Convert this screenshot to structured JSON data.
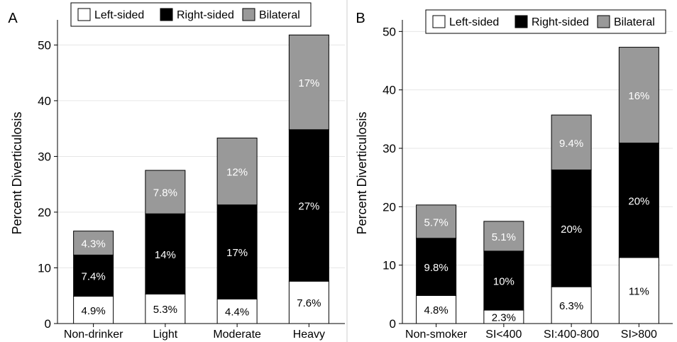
{
  "figure": {
    "divider_color": "#dddddd"
  },
  "legend": {
    "items": [
      {
        "label": "Left-sided",
        "color": "#ffffff"
      },
      {
        "label": "Right-sided",
        "color": "#000000"
      },
      {
        "label": "Bilateral",
        "color": "#999999"
      }
    ]
  },
  "chart_data": [
    {
      "type": "bar",
      "stacked": true,
      "panel_label": "A",
      "ylabel": "Percent Diverticulosis",
      "xlabel": "",
      "ylim": [
        0,
        54
      ],
      "yticks": [
        0,
        10,
        20,
        30,
        40,
        50
      ],
      "grid": true,
      "legend_position": "top",
      "categories": [
        "Non-drinker",
        "Light",
        "Moderate",
        "Heavy"
      ],
      "series": [
        {
          "name": "Left-sided",
          "color": "#ffffff",
          "label_color": "#000000",
          "values": [
            4.9,
            5.3,
            4.4,
            7.6
          ],
          "labels": [
            "4.9%",
            "5.3%",
            "4.4%",
            "7.6%"
          ]
        },
        {
          "name": "Right-sided",
          "color": "#000000",
          "label_color": "#ffffff",
          "values": [
            7.4,
            14.4,
            16.9,
            27.2
          ],
          "labels": [
            "7.4%",
            "14%",
            "17%",
            "27%"
          ]
        },
        {
          "name": "Bilateral",
          "color": "#999999",
          "label_color": "#ffffff",
          "values": [
            4.3,
            7.8,
            12.0,
            17.0
          ],
          "labels": [
            "4.3%",
            "7.8%",
            "12%",
            "17%"
          ]
        }
      ]
    },
    {
      "type": "bar",
      "stacked": true,
      "panel_label": "B",
      "ylabel": "Percent Diverticulosis",
      "xlabel": "",
      "ylim": [
        0,
        51.5
      ],
      "yticks": [
        0,
        10,
        20,
        30,
        40,
        50
      ],
      "grid": true,
      "legend_position": "top",
      "categories": [
        "Non-smoker",
        "SI<400",
        "SI:400-800",
        "SI>800"
      ],
      "series": [
        {
          "name": "Left-sided",
          "color": "#ffffff",
          "label_color": "#000000",
          "values": [
            4.8,
            2.3,
            6.3,
            11.3
          ],
          "labels": [
            "4.8%",
            "2.3%",
            "6.3%",
            "11%"
          ]
        },
        {
          "name": "Right-sided",
          "color": "#000000",
          "label_color": "#ffffff",
          "values": [
            9.8,
            10.1,
            20.0,
            19.6
          ],
          "labels": [
            "9.8%",
            "10%",
            "20%",
            "20%"
          ]
        },
        {
          "name": "Bilateral",
          "color": "#999999",
          "label_color": "#ffffff",
          "values": [
            5.7,
            5.1,
            9.4,
            16.4
          ],
          "labels": [
            "5.7%",
            "5.1%",
            "9.4%",
            "16%"
          ]
        }
      ]
    }
  ]
}
